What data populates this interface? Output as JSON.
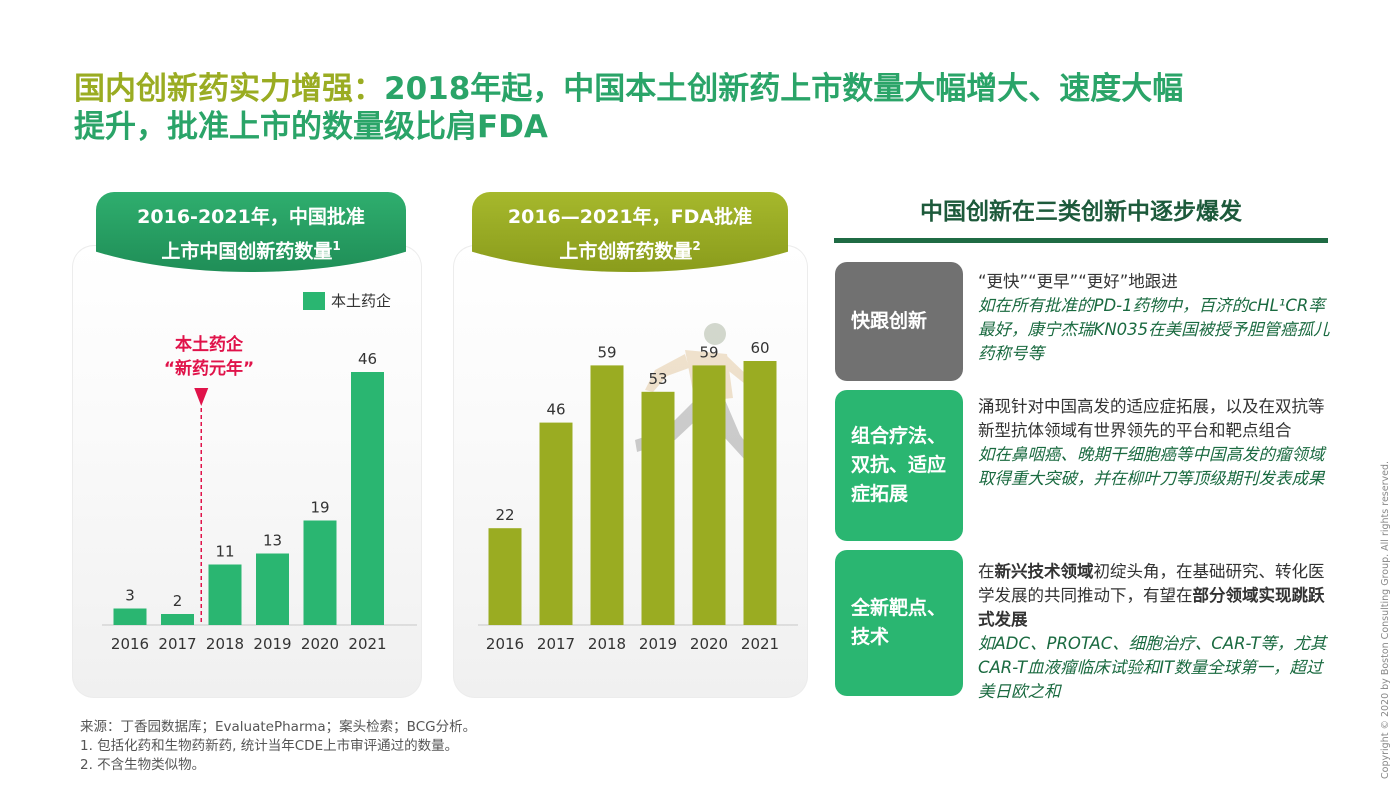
{
  "title": {
    "line1_prefix": "国内创新药实力增强：",
    "line1_rest": "2018年起，中国本土创新药上市数量大幅增大、速度大幅",
    "line2": "提升，批准上市的数量级比肩FDA"
  },
  "left_tab": {
    "line1": "2016-2021年，中国批准",
    "line2": "上市中国创新药数量",
    "sup": "1"
  },
  "right_tab": {
    "line1": "2016—2021年，FDA批准",
    "line2": "上市创新药数量",
    "sup": "2"
  },
  "left_legend": {
    "label": "本土药企"
  },
  "marker": {
    "line1": "本土药企",
    "line2": "“新药元年”"
  },
  "chart_data": [
    {
      "type": "bar",
      "categories": [
        "2016",
        "2017",
        "2018",
        "2019",
        "2020",
        "2021"
      ],
      "series": [
        {
          "name": "本土药企",
          "values": [
            3,
            2,
            11,
            13,
            19,
            46
          ]
        }
      ],
      "annotation": "本土药企 “新药元年” (2018)",
      "color": "#2ab671"
    },
    {
      "type": "bar",
      "categories": [
        "2016",
        "2017",
        "2018",
        "2019",
        "2020",
        "2021"
      ],
      "series": [
        {
          "values": [
            22,
            46,
            59,
            53,
            59,
            60
          ]
        }
      ],
      "color": "#9aac22"
    }
  ],
  "side": {
    "header": "中国创新在三类创新中逐步爆发",
    "items": [
      {
        "category": "快跟创新",
        "head": "“更快”“更早”“更好”地跟进",
        "detail": "如在所有批准的PD-1药物中，百济的cHL¹CR率最好，康宁杰瑞KN035在美国被授予胆管癌孤儿药称号等"
      },
      {
        "category": "组合疗法、双抗、适应症拓展",
        "head": "涌现针对中国高发的适应症拓展，以及在双抗等新型抗体领域有世界领先的平台和靶点组合",
        "detail": "如在鼻咽癌、晚期干细胞癌等中国高发的瘤领域取得重大突破，并在柳叶刀等顶级期刊发表成果"
      },
      {
        "category": "全新靶点、技术",
        "head_pre": "在",
        "head_bold1": "新兴技术领域",
        "head_mid": "初绽头角，在基础研究、转化医学发展的共同推动下，有望在",
        "head_bold2": "部分领域实现跳跃式发展",
        "detail": "如ADC、PROTAC、细胞治疗、CAR-T等，尤其CAR-T血液瘤临床试验和IT数量全球第一，超过美日欧之和"
      }
    ]
  },
  "footnotes": [
    "来源：丁香园数据库；EvaluatePharma；案头检索；BCG分析。",
    "1. 包括化药和生物药新药, 统计当年CDE上市审评通过的数量。",
    "2. 不含生物类似物。"
  ],
  "copyright": "Copyright © 2020 by Boston Consulting Group.  All rights reserved.",
  "colors": {
    "green": "#2ab671",
    "olive": "#9aac22",
    "dark_green": "#1d5a3b",
    "gray": "#717171",
    "red": "#e0134a"
  }
}
